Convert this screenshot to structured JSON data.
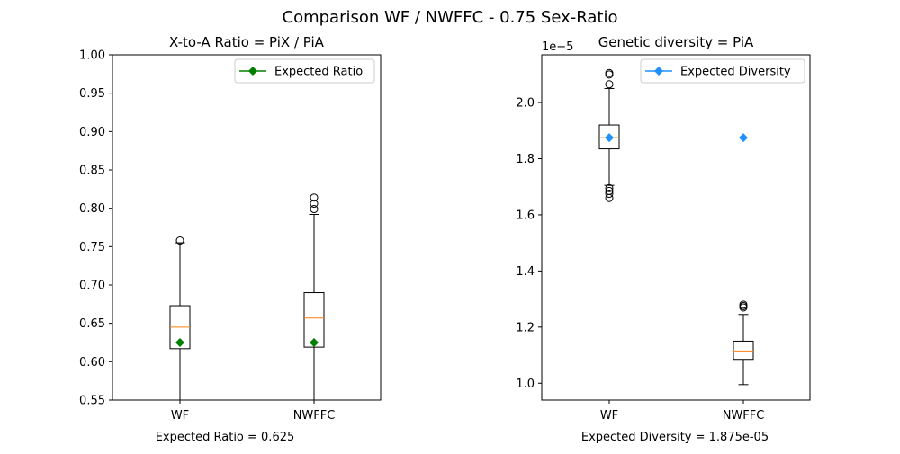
{
  "suptitle": "Comparison WF / NWFFC - 0.75 Sex-Ratio",
  "chart_data": [
    {
      "type": "box",
      "title": "X-to-A Ratio = PiX / PiA",
      "categories": [
        "WF",
        "NWFFC"
      ],
      "ylim": [
        0.55,
        1.0
      ],
      "yticks": [
        0.55,
        0.6,
        0.65,
        0.7,
        0.75,
        0.8,
        0.85,
        0.9,
        0.95,
        1.0
      ],
      "ytick_labels": [
        "0.55",
        "0.60",
        "0.65",
        "0.70",
        "0.75",
        "0.80",
        "0.85",
        "0.90",
        "0.95",
        "1.00"
      ],
      "boxes": [
        {
          "name": "WF",
          "whislo": 0.55,
          "q1": 0.617,
          "med": 0.645,
          "q3": 0.673,
          "whishi": 0.755,
          "fliers": [
            0.758
          ]
        },
        {
          "name": "NWFFC",
          "whislo": 0.55,
          "q1": 0.619,
          "med": 0.657,
          "q3": 0.69,
          "whishi": 0.792,
          "fliers": [
            0.799,
            0.806,
            0.814
          ]
        }
      ],
      "expected": {
        "label": "Expected Ratio",
        "value": 0.625,
        "color": "#008000"
      },
      "legend_position": "upper right",
      "footnote": "Expected Ratio = 0.625"
    },
    {
      "type": "box",
      "title": "Genetic diversity = PiA",
      "categories": [
        "WF",
        "NWFFC"
      ],
      "ylim": [
        0.94,
        2.17
      ],
      "yticks": [
        1.0,
        1.2,
        1.4,
        1.6,
        1.8,
        2.0
      ],
      "ytick_labels": [
        "1.0",
        "1.2",
        "1.4",
        "1.6",
        "1.8",
        "2.0"
      ],
      "offset_label": "1e−5",
      "boxes": [
        {
          "name": "WF",
          "whislo": 1.705,
          "q1": 1.835,
          "med": 1.875,
          "q3": 1.92,
          "whishi": 2.05,
          "fliers": [
            2.105,
            2.1,
            2.065,
            1.695,
            1.685,
            1.675,
            1.66
          ]
        },
        {
          "name": "NWFFC",
          "whislo": 0.995,
          "q1": 1.085,
          "med": 1.115,
          "q3": 1.15,
          "whishi": 1.245,
          "fliers": [
            1.27,
            1.275,
            1.28
          ]
        }
      ],
      "expected": {
        "label": "Expected Diversity",
        "value": 1.875,
        "color": "#1e90ff"
      },
      "legend_position": "upper right",
      "footnote": "Expected Diversity = 1.875e-05"
    }
  ]
}
